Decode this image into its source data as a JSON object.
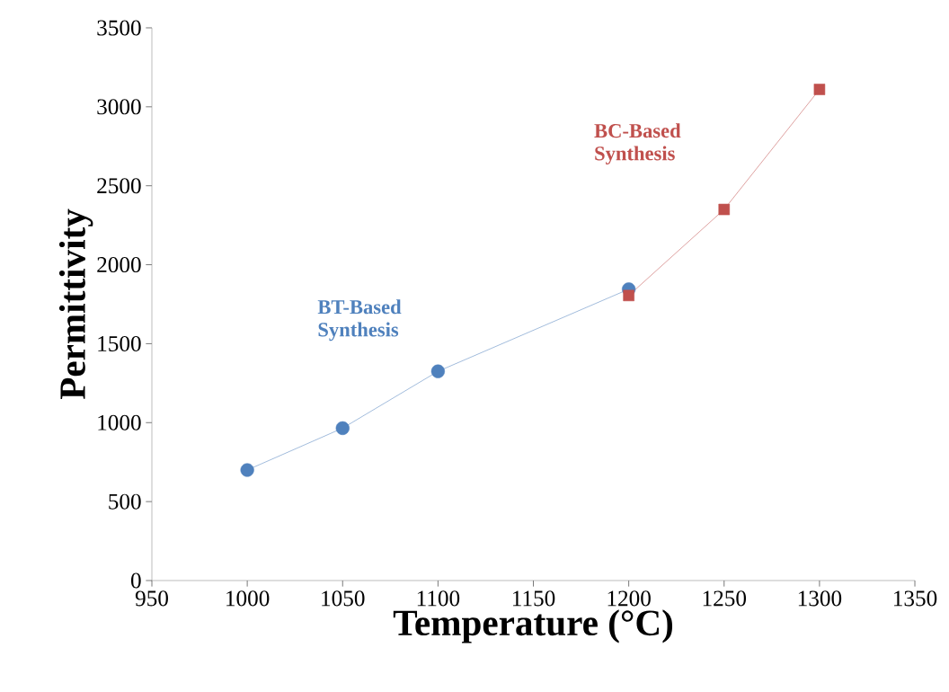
{
  "chart_data": {
    "type": "line",
    "xlabel": "Temperature (°C)",
    "ylabel": "Permittivity",
    "xlim": [
      950,
      1350
    ],
    "xticks": [
      950,
      1000,
      1050,
      1100,
      1150,
      1200,
      1250,
      1300,
      1350
    ],
    "ylim": [
      0,
      3500
    ],
    "yticks": [
      0,
      500,
      1000,
      1500,
      2000,
      2500,
      3000,
      3500
    ],
    "grid": false,
    "legend": false,
    "line_style": "solid",
    "series": [
      {
        "name": "BT-Based Synthesis",
        "color": "#4f81bd",
        "marker": "circle",
        "x": [
          1000,
          1050,
          1100,
          1200
        ],
        "values": [
          700,
          965,
          1325,
          1845
        ]
      },
      {
        "name": "BC-Based Synthesis",
        "color": "#c0504d",
        "marker": "square",
        "x": [
          1200,
          1250,
          1300
        ],
        "values": [
          1805,
          2350,
          3110
        ]
      }
    ]
  }
}
